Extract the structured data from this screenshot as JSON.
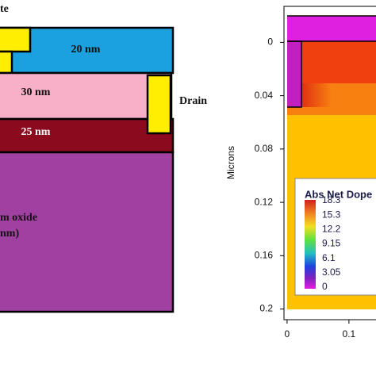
{
  "diagram": {
    "gate_label": "te",
    "layer_top_label": "20 nm",
    "layer_mid_label": "30 nm",
    "drain_label": "Drain",
    "layer_low_label": "25 nm",
    "oxide_label_1": "m oxide",
    "oxide_label_2": "nm)"
  },
  "chart_data": {
    "type": "contour",
    "ylabel": "Microns",
    "ylim": [
      -0.027,
      0.208
    ],
    "y_inverted": true,
    "yticks": [
      0,
      0.04,
      0.08,
      0.12,
      0.16,
      0.2
    ],
    "xlim": [
      -0.005,
      0.144
    ],
    "xticks": [
      0,
      0.1
    ],
    "legend_title": "Abs Net Dope",
    "legend_values": [
      18.3,
      15.3,
      12.2,
      9.15,
      6.1,
      3.05,
      0
    ]
  }
}
